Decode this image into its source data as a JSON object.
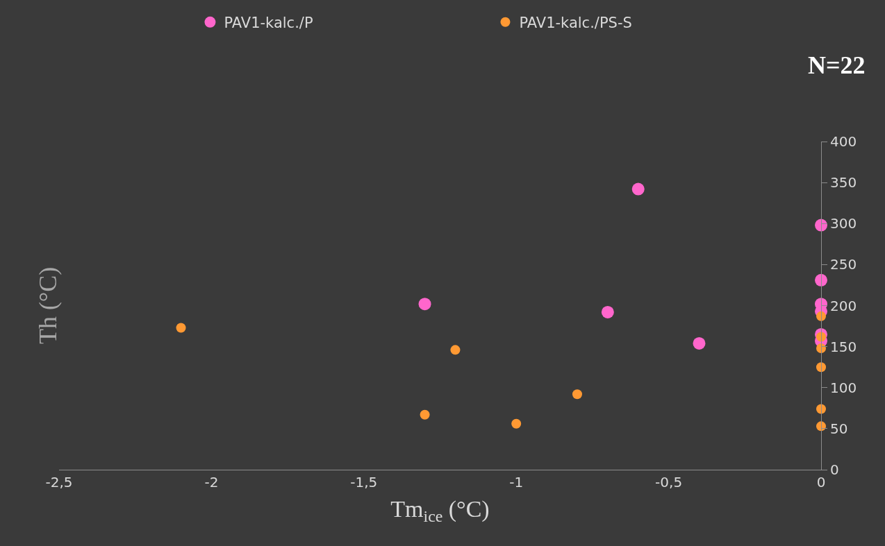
{
  "chart_data": {
    "type": "scatter",
    "xlabel": "Tm$_{ice}$ (°C)",
    "ylabel": "Th (°C)",
    "xlim": [
      -2.5,
      0
    ],
    "xticks": [
      {
        "value": -2.5,
        "label": "-2,5"
      },
      -2,
      {
        "value": -1.5,
        "label": "-1,5"
      },
      -1,
      {
        "value": -0.5,
        "label": "-0,5"
      },
      0
    ],
    "ylim": [
      0,
      400
    ],
    "yticks": [
      0,
      50,
      100,
      150,
      200,
      250,
      300,
      350,
      400
    ],
    "grid": false,
    "legend": "top",
    "marker": "circle",
    "annotations": [
      "N=22"
    ],
    "series": [
      {
        "name": "PAV1-kalc./P",
        "color": "#ff66cc",
        "x": [
          -1.3,
          -0.7,
          -0.6,
          -0.4,
          0,
          0,
          0,
          0,
          0,
          0
        ],
        "values": [
          202,
          192,
          342,
          154,
          298,
          231,
          202,
          193,
          165,
          157
        ]
      },
      {
        "name": "PAV1-kalc./PS-S",
        "color": "#ff9933",
        "x": [
          -2.1,
          -1.3,
          -1.2,
          -1,
          -0.8,
          0,
          0,
          0,
          0,
          0,
          0
        ],
        "values": [
          173,
          67,
          146,
          56,
          92,
          187,
          162,
          148,
          125,
          74,
          53
        ]
      }
    ]
  }
}
